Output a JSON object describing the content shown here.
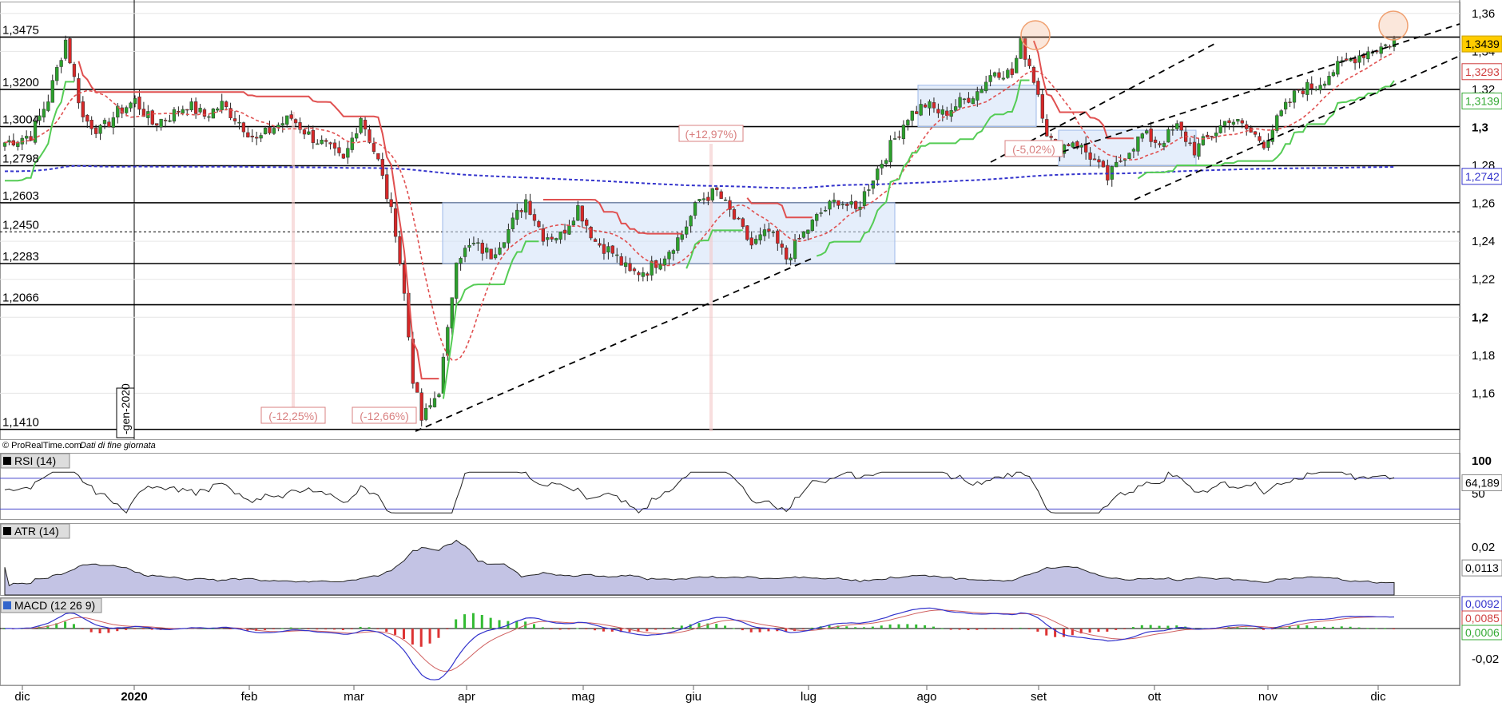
{
  "watermark": "© ProRealTime.com",
  "watermark_note": "Dati di fine giornata",
  "crosshair_date": "-gen-2020",
  "colors": {
    "up": "#2ca02c",
    "down": "#d62728",
    "wick": "#222222",
    "supertrend_red": "#e05050",
    "supertrend_green": "#55cc55",
    "ma_red_dashed": "#e05050",
    "ma_blue_dashed": "#3333cc",
    "box_fill": "#cfe0f8",
    "box_stroke": "#9db8e8",
    "pct_label": "#d98080",
    "highlight_circle": "#f0a070",
    "last_price_bg": "#ffcc00",
    "rsi_line": "#222222",
    "rsi_band": "#4444cc",
    "atr_fill": "#aaaad8",
    "macd_line": "#3333cc",
    "macd_signal": "#d06060"
  },
  "chart_data": [
    {
      "type": "candlestick",
      "panel": "price",
      "months": [
        "dic",
        "2020",
        "feb",
        "mar",
        "apr",
        "mag",
        "giu",
        "lug",
        "ago",
        "set",
        "ott",
        "nov",
        "dic"
      ],
      "y_ticks": [
        "1,36",
        "1,34",
        "1,32",
        "1,3",
        "1,28",
        "1,26",
        "1,24",
        "1,22",
        "1,2",
        "1,18",
        "1,16"
      ],
      "ylim": [
        1.14,
        1.362
      ],
      "levels": [
        {
          "label": "1,3475",
          "value": 1.3475
        },
        {
          "label": "1,3200",
          "value": 1.32
        },
        {
          "label": "1,3004",
          "value": 1.3004
        },
        {
          "label": "1,2798",
          "value": 1.2798
        },
        {
          "label": "1,2603",
          "value": 1.2603
        },
        {
          "label": "1,2450",
          "value": 1.245,
          "dashed": true
        },
        {
          "label": "1,2283",
          "value": 1.2283
        },
        {
          "label": "1,2066",
          "value": 1.2066
        },
        {
          "label": "1,1410",
          "value": 1.141
        }
      ],
      "annotations": [
        "(-12,25%)",
        "(-12,66%)",
        "(+12,97%)",
        "(-5,02%)"
      ],
      "right_labels": [
        {
          "text": "1,3439",
          "value": 1.3439,
          "style": "last"
        },
        {
          "text": "1,3293",
          "value": 1.3293,
          "style": "red"
        },
        {
          "text": "1,3139",
          "value": 1.3139,
          "style": "green"
        },
        {
          "text": "1,2742",
          "value": 1.2742,
          "style": "blue"
        }
      ],
      "anchors": [
        [
          0,
          1.292
        ],
        [
          6,
          1.296
        ],
        [
          10,
          1.315
        ],
        [
          14,
          1.346
        ],
        [
          18,
          1.305
        ],
        [
          22,
          1.298
        ],
        [
          26,
          1.308
        ],
        [
          30,
          1.314
        ],
        [
          34,
          1.302
        ],
        [
          38,
          1.306
        ],
        [
          42,
          1.312
        ],
        [
          46,
          1.306
        ],
        [
          50,
          1.312
        ],
        [
          54,
          1.303
        ],
        [
          58,
          1.293
        ],
        [
          62,
          1.3
        ],
        [
          66,
          1.305
        ],
        [
          70,
          1.296
        ],
        [
          74,
          1.29
        ],
        [
          78,
          1.282
        ],
        [
          82,
          1.306
        ],
        [
          86,
          1.282
        ],
        [
          90,
          1.246
        ],
        [
          92,
          1.212
        ],
        [
          94,
          1.168
        ],
        [
          96,
          1.146
        ],
        [
          98,
          1.153
        ],
        [
          100,
          1.162
        ],
        [
          102,
          1.192
        ],
        [
          104,
          1.232
        ],
        [
          108,
          1.238
        ],
        [
          112,
          1.233
        ],
        [
          116,
          1.246
        ],
        [
          120,
          1.262
        ],
        [
          124,
          1.243
        ],
        [
          128,
          1.243
        ],
        [
          132,
          1.258
        ],
        [
          136,
          1.24
        ],
        [
          140,
          1.234
        ],
        [
          144,
          1.223
        ],
        [
          148,
          1.225
        ],
        [
          152,
          1.233
        ],
        [
          156,
          1.244
        ],
        [
          160,
          1.262
        ],
        [
          164,
          1.266
        ],
        [
          168,
          1.252
        ],
        [
          172,
          1.238
        ],
        [
          176,
          1.245
        ],
        [
          180,
          1.231
        ],
        [
          184,
          1.244
        ],
        [
          188,
          1.255
        ],
        [
          192,
          1.262
        ],
        [
          196,
          1.256
        ],
        [
          200,
          1.274
        ],
        [
          204,
          1.29
        ],
        [
          208,
          1.306
        ],
        [
          212,
          1.312
        ],
        [
          216,
          1.307
        ],
        [
          220,
          1.313
        ],
        [
          224,
          1.319
        ],
        [
          228,
          1.33
        ],
        [
          232,
          1.328
        ],
        [
          234,
          1.344
        ],
        [
          236,
          1.333
        ],
        [
          238,
          1.318
        ],
        [
          240,
          1.298
        ],
        [
          242,
          1.288
        ],
        [
          246,
          1.293
        ],
        [
          250,
          1.285
        ],
        [
          254,
          1.273
        ],
        [
          258,
          1.286
        ],
        [
          262,
          1.296
        ],
        [
          266,
          1.292
        ],
        [
          270,
          1.3
        ],
        [
          274,
          1.288
        ],
        [
          278,
          1.296
        ],
        [
          282,
          1.305
        ],
        [
          286,
          1.299
        ],
        [
          290,
          1.292
        ],
        [
          294,
          1.307
        ],
        [
          298,
          1.32
        ],
        [
          302,
          1.322
        ],
        [
          306,
          1.33
        ],
        [
          310,
          1.336
        ],
        [
          314,
          1.34
        ],
        [
          318,
          1.343
        ],
        [
          320,
          1.346
        ]
      ],
      "n": 321
    },
    {
      "type": "line",
      "panel": "rsi",
      "title": "RSI (14)",
      "y_ticks": [
        "100",
        "50"
      ],
      "current": "64,189"
    },
    {
      "type": "area",
      "panel": "atr",
      "title": "ATR (14)",
      "y_ticks": [
        "0,02"
      ],
      "current": "0,0113"
    },
    {
      "type": "bar",
      "panel": "macd",
      "title": "MACD (12 26 9)",
      "y_ticks": [
        "-0,02"
      ],
      "current_macd": "0,0085",
      "current_hist": "0,0006",
      "current_top": "0,0092"
    }
  ]
}
